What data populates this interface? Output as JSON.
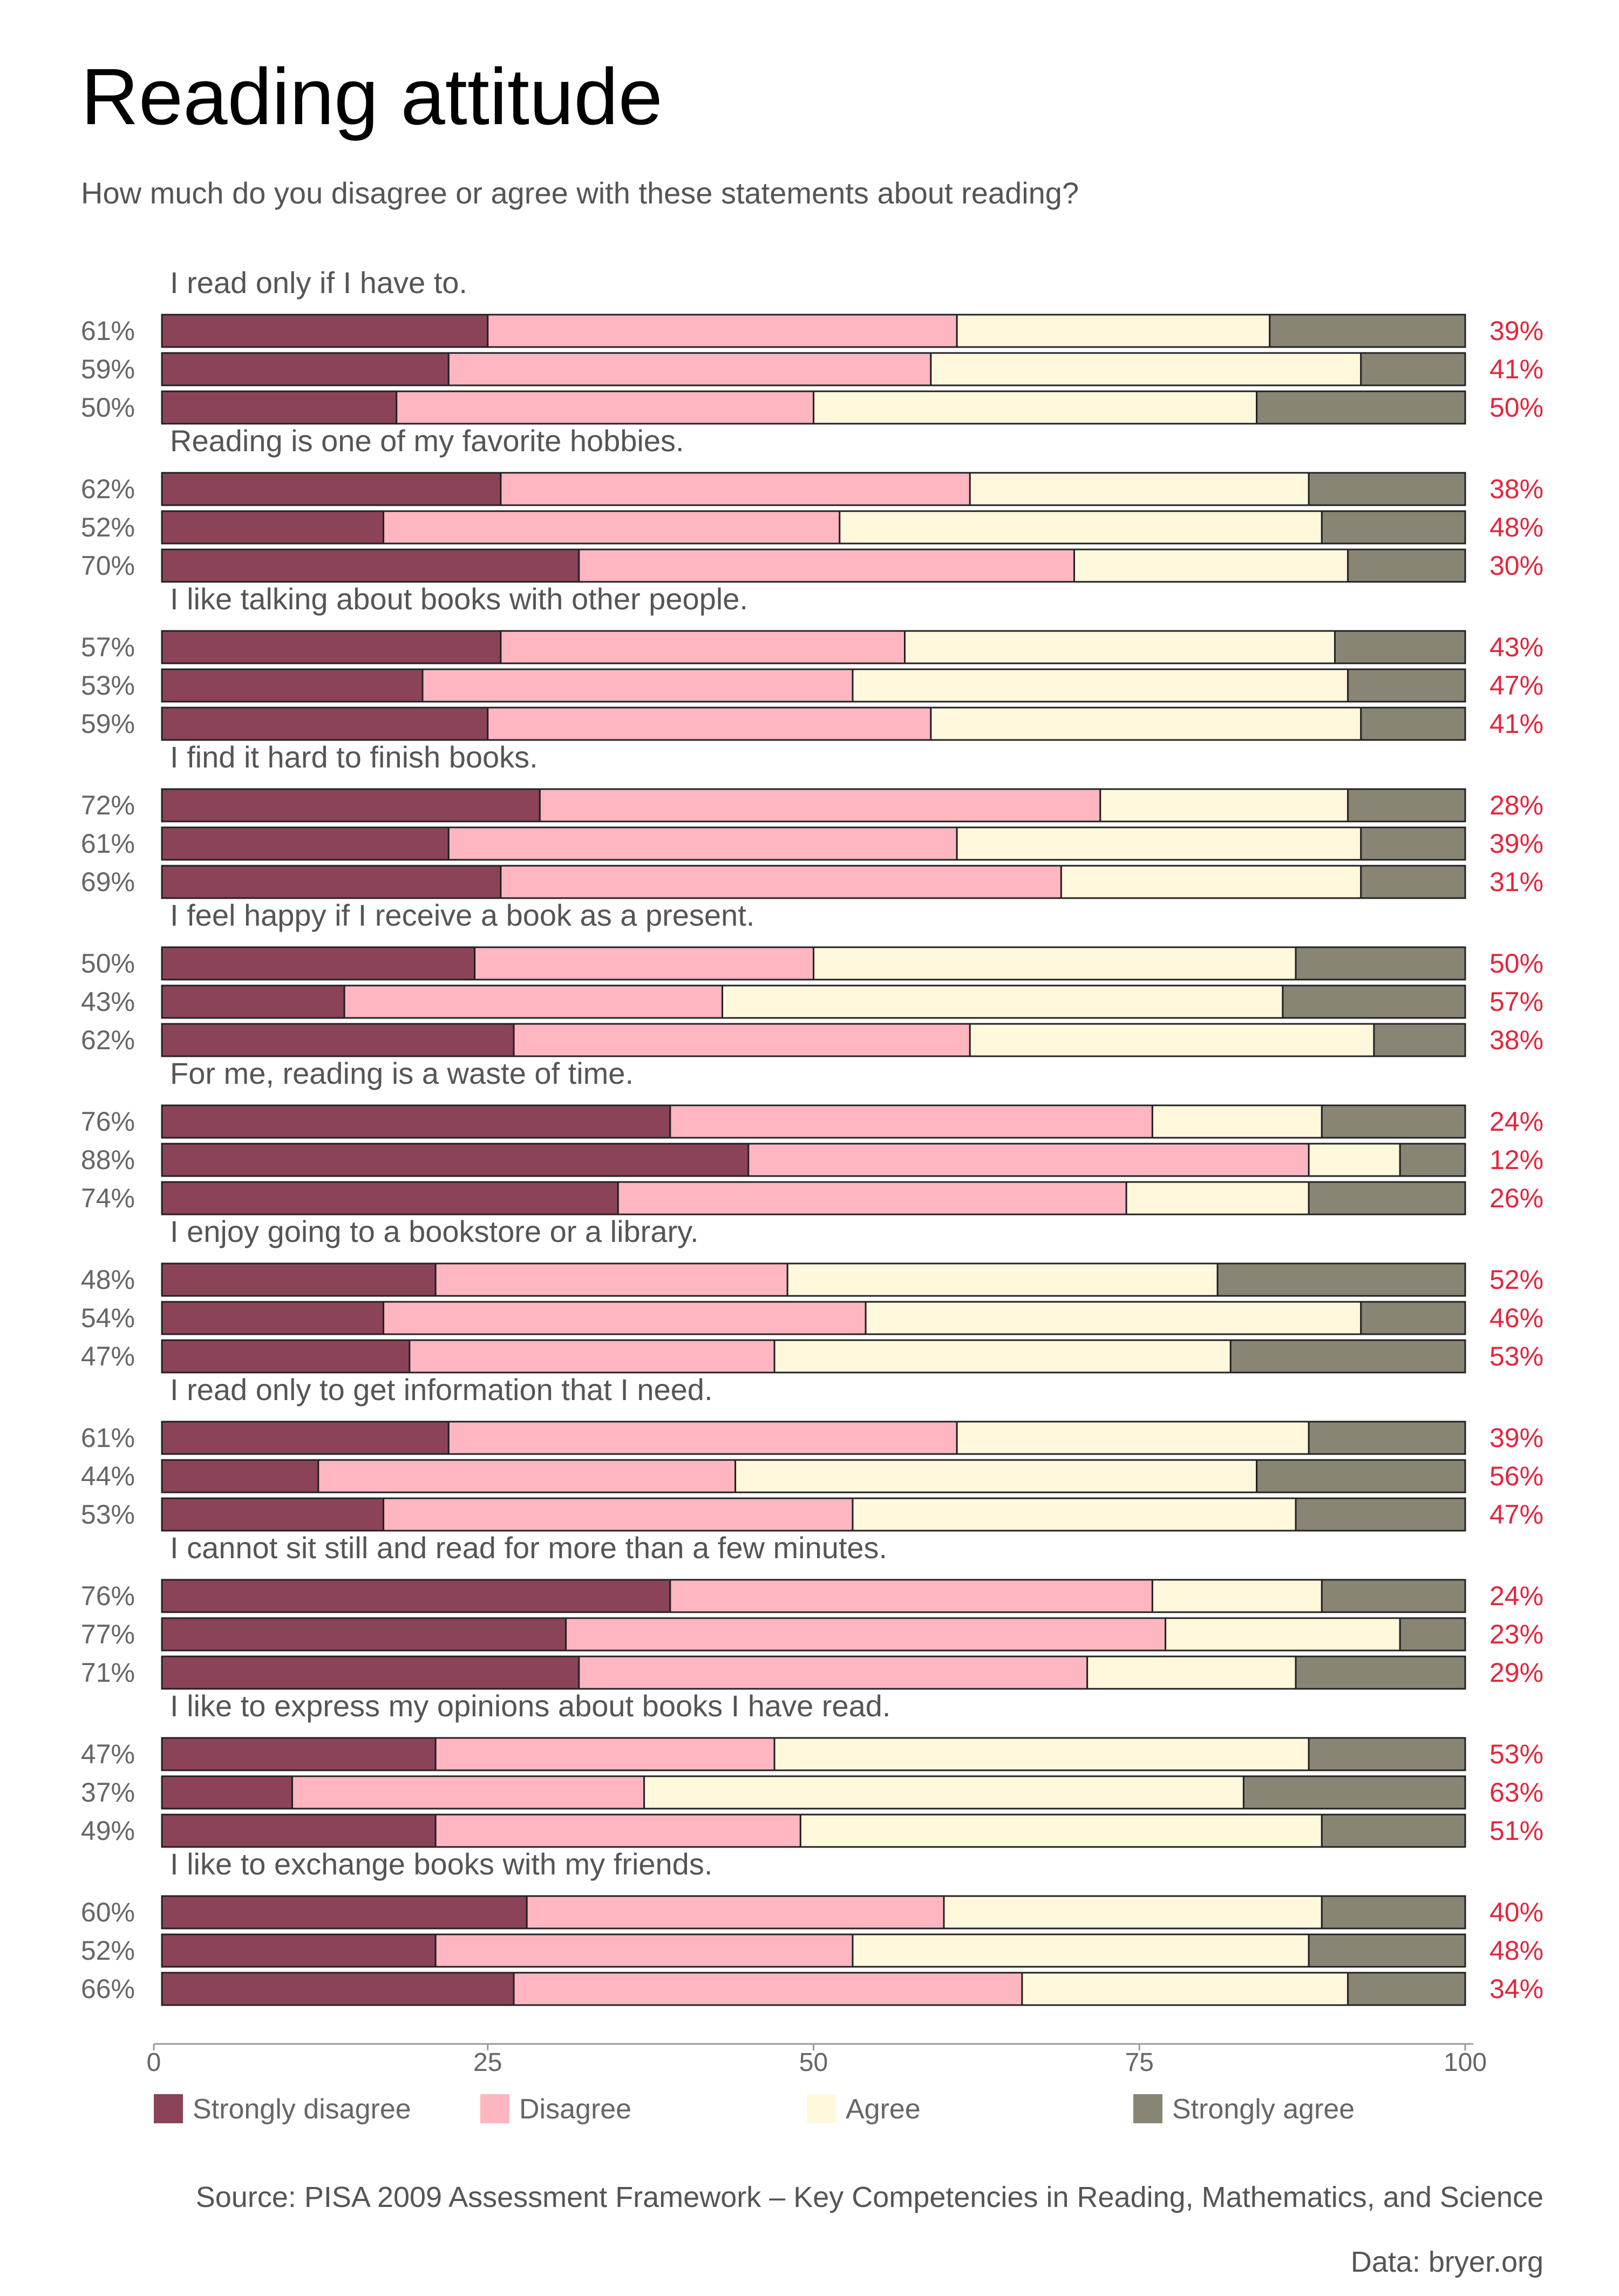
{
  "title": "Reading attitude",
  "subtitle": "How much do you disagree or agree with these statements about reading?",
  "source": "Source: PISA 2009 Assessment Framework – Key Competencies in Reading, Mathematics, and Science",
  "credit": "Data: bryer.org",
  "chart_data": {
    "type": "bar",
    "orientation": "horizontal",
    "stacked": true,
    "xlim": [
      0,
      100
    ],
    "xticks": [
      "0",
      "25",
      "50",
      "75",
      "100"
    ],
    "grid": false,
    "legend_position": "bottom",
    "legend": [
      {
        "name": "Strongly disagree",
        "color": "#8b4358"
      },
      {
        "name": "Disagree",
        "color": "#ffb6c1"
      },
      {
        "name": "Agree",
        "color": "#fff8dc"
      },
      {
        "name": "Strongly agree",
        "color": "#898575"
      }
    ],
    "groups": [
      {
        "statement": "I read only if I have to.",
        "rows": [
          {
            "disagree_total": "61%",
            "agree_total": "39%",
            "values": [
              25,
              36,
              24,
              15
            ]
          },
          {
            "disagree_total": "59%",
            "agree_total": "41%",
            "values": [
              22,
              37,
              33,
              8
            ]
          },
          {
            "disagree_total": "50%",
            "agree_total": "50%",
            "values": [
              18,
              32,
              34,
              16
            ]
          }
        ]
      },
      {
        "statement": "Reading is one of my favorite hobbies.",
        "rows": [
          {
            "disagree_total": "62%",
            "agree_total": "38%",
            "values": [
              26,
              36,
              26,
              12
            ]
          },
          {
            "disagree_total": "52%",
            "agree_total": "48%",
            "values": [
              17,
              35,
              37,
              11
            ]
          },
          {
            "disagree_total": "70%",
            "agree_total": "30%",
            "values": [
              32,
              38,
              21,
              9
            ]
          }
        ]
      },
      {
        "statement": "I like talking about books with other people.",
        "rows": [
          {
            "disagree_total": "57%",
            "agree_total": "43%",
            "values": [
              26,
              31,
              33,
              10
            ]
          },
          {
            "disagree_total": "53%",
            "agree_total": "47%",
            "values": [
              20,
              33,
              38,
              9
            ]
          },
          {
            "disagree_total": "59%",
            "agree_total": "41%",
            "values": [
              25,
              34,
              33,
              8
            ]
          }
        ]
      },
      {
        "statement": "I find it hard to finish books.",
        "rows": [
          {
            "disagree_total": "72%",
            "agree_total": "28%",
            "values": [
              29,
              43,
              19,
              9
            ]
          },
          {
            "disagree_total": "61%",
            "agree_total": "39%",
            "values": [
              22,
              39,
              31,
              8
            ]
          },
          {
            "disagree_total": "69%",
            "agree_total": "31%",
            "values": [
              26,
              43,
              23,
              8
            ]
          }
        ]
      },
      {
        "statement": "I feel happy if I receive a book as a present.",
        "rows": [
          {
            "disagree_total": "50%",
            "agree_total": "50%",
            "values": [
              24,
              26,
              37,
              13
            ]
          },
          {
            "disagree_total": "43%",
            "agree_total": "57%",
            "values": [
              14,
              29,
              43,
              14
            ]
          },
          {
            "disagree_total": "62%",
            "agree_total": "38%",
            "values": [
              27,
              35,
              31,
              7
            ]
          }
        ]
      },
      {
        "statement": "For me, reading is a waste of time.",
        "rows": [
          {
            "disagree_total": "76%",
            "agree_total": "24%",
            "values": [
              39,
              37,
              13,
              11
            ]
          },
          {
            "disagree_total": "88%",
            "agree_total": "12%",
            "values": [
              45,
              43,
              7,
              5
            ]
          },
          {
            "disagree_total": "74%",
            "agree_total": "26%",
            "values": [
              35,
              39,
              14,
              12
            ]
          }
        ]
      },
      {
        "statement": "I enjoy going to a bookstore or a library.",
        "rows": [
          {
            "disagree_total": "48%",
            "agree_total": "52%",
            "values": [
              21,
              27,
              33,
              19
            ]
          },
          {
            "disagree_total": "54%",
            "agree_total": "46%",
            "values": [
              17,
              37,
              38,
              8
            ]
          },
          {
            "disagree_total": "47%",
            "agree_total": "53%",
            "values": [
              19,
              28,
              35,
              18
            ]
          }
        ]
      },
      {
        "statement": "I read only to get information that I need.",
        "rows": [
          {
            "disagree_total": "61%",
            "agree_total": "39%",
            "values": [
              22,
              39,
              27,
              12
            ]
          },
          {
            "disagree_total": "44%",
            "agree_total": "56%",
            "values": [
              12,
              32,
              40,
              16
            ]
          },
          {
            "disagree_total": "53%",
            "agree_total": "47%",
            "values": [
              17,
              36,
              34,
              13
            ]
          }
        ]
      },
      {
        "statement": "I cannot sit still and read for more than a few minutes.",
        "rows": [
          {
            "disagree_total": "76%",
            "agree_total": "24%",
            "values": [
              39,
              37,
              13,
              11
            ]
          },
          {
            "disagree_total": "77%",
            "agree_total": "23%",
            "values": [
              31,
              46,
              18,
              5
            ]
          },
          {
            "disagree_total": "71%",
            "agree_total": "29%",
            "values": [
              32,
              39,
              16,
              13
            ]
          }
        ]
      },
      {
        "statement": "I like to express my opinions about books I have read.",
        "rows": [
          {
            "disagree_total": "47%",
            "agree_total": "53%",
            "values": [
              21,
              26,
              41,
              12
            ]
          },
          {
            "disagree_total": "37%",
            "agree_total": "63%",
            "values": [
              10,
              27,
              46,
              17
            ]
          },
          {
            "disagree_total": "49%",
            "agree_total": "51%",
            "values": [
              21,
              28,
              40,
              11
            ]
          }
        ]
      },
      {
        "statement": "I like to exchange books with my friends.",
        "rows": [
          {
            "disagree_total": "60%",
            "agree_total": "40%",
            "values": [
              28,
              32,
              29,
              11
            ]
          },
          {
            "disagree_total": "52%",
            "agree_total": "48%",
            "values": [
              21,
              32,
              35,
              12
            ]
          },
          {
            "disagree_total": "66%",
            "agree_total": "34%",
            "values": [
              27,
              39,
              25,
              9
            ]
          }
        ]
      }
    ]
  }
}
